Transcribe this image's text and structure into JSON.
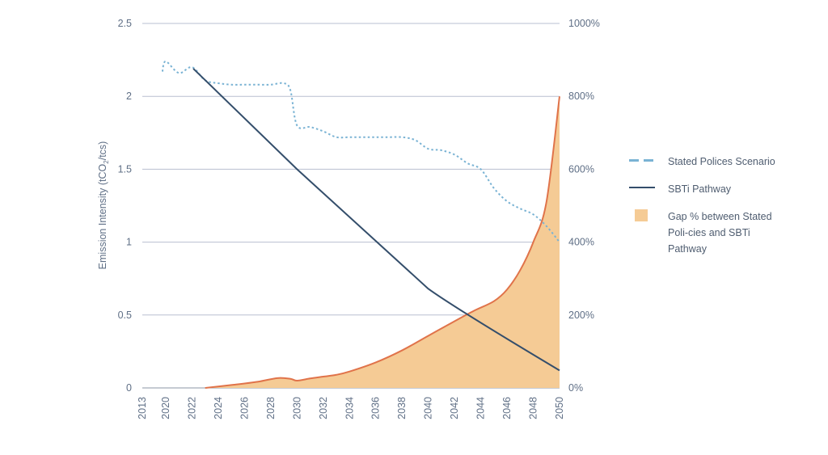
{
  "chart_data": {
    "type": "line+area",
    "title": "",
    "ylabel": "Emission Intensity (tCO2/tcs)",
    "ylabel_parts": [
      "Emission Intensity (tCO",
      "2",
      "/tcs)"
    ],
    "ylim": [
      0,
      2.5
    ],
    "y_ticks": [
      "0",
      "0.5",
      "1",
      "1.5",
      "2",
      "2.5"
    ],
    "y_tick_values": [
      0,
      0.5,
      1,
      1.5,
      2,
      2.5
    ],
    "y2lim": [
      0,
      1000
    ],
    "y2_ticks": [
      "0%",
      "200%",
      "400%",
      "600%",
      "800%",
      "1000%"
    ],
    "y2_tick_values": [
      0,
      200,
      400,
      600,
      800,
      1000
    ],
    "x_ticks": [
      "2013",
      "2020",
      "2022",
      "2024",
      "2026",
      "2028",
      "2030",
      "2032",
      "2034",
      "2036",
      "2038",
      "2040",
      "2042",
      "2044",
      "2046",
      "2048",
      "2050"
    ],
    "series": [
      {
        "name": "Stated Polices Scenario",
        "style": "dashed",
        "axis": "left",
        "color": "#7ab3d4",
        "points": [
          {
            "x": 2019.0,
            "y": 2.17
          },
          {
            "x": 2020.0,
            "y": 2.24
          },
          {
            "x": 2021.0,
            "y": 2.16
          },
          {
            "x": 2022.0,
            "y": 2.2
          },
          {
            "x": 2023.0,
            "y": 2.11
          },
          {
            "x": 2024.0,
            "y": 2.09
          },
          {
            "x": 2025.0,
            "y": 2.08
          },
          {
            "x": 2026.0,
            "y": 2.08
          },
          {
            "x": 2027.0,
            "y": 2.08
          },
          {
            "x": 2028.0,
            "y": 2.08
          },
          {
            "x": 2029.0,
            "y": 2.09
          },
          {
            "x": 2029.5,
            "y": 2.04
          },
          {
            "x": 2030.0,
            "y": 1.8
          },
          {
            "x": 2031.0,
            "y": 1.79
          },
          {
            "x": 2032.0,
            "y": 1.76
          },
          {
            "x": 2033.0,
            "y": 1.72
          },
          {
            "x": 2034.0,
            "y": 1.72
          },
          {
            "x": 2035.0,
            "y": 1.72
          },
          {
            "x": 2036.0,
            "y": 1.72
          },
          {
            "x": 2037.0,
            "y": 1.72
          },
          {
            "x": 2038.0,
            "y": 1.72
          },
          {
            "x": 2039.0,
            "y": 1.7
          },
          {
            "x": 2040.0,
            "y": 1.64
          },
          {
            "x": 2041.0,
            "y": 1.63
          },
          {
            "x": 2042.0,
            "y": 1.6
          },
          {
            "x": 2043.0,
            "y": 1.54
          },
          {
            "x": 2044.0,
            "y": 1.5
          },
          {
            "x": 2045.0,
            "y": 1.37
          },
          {
            "x": 2046.0,
            "y": 1.28
          },
          {
            "x": 2047.0,
            "y": 1.23
          },
          {
            "x": 2048.0,
            "y": 1.19
          },
          {
            "x": 2049.0,
            "y": 1.11
          },
          {
            "x": 2050.0,
            "y": 1.0
          }
        ]
      },
      {
        "name": "SBTi Pathway",
        "style": "solid",
        "axis": "left",
        "color": "#344e6b",
        "points": [
          {
            "x": 2022.1,
            "y": 2.19
          },
          {
            "x": 2030.0,
            "y": 1.5
          },
          {
            "x": 2040.0,
            "y": 0.68
          },
          {
            "x": 2050.0,
            "y": 0.12
          }
        ]
      },
      {
        "name": "Gap % between Stated Policies and SBTi Pathway",
        "style": "area",
        "axis": "right",
        "color": "#f5cb95",
        "line_color": "#e0734a",
        "points": [
          {
            "x": 2023.0,
            "y": 0
          },
          {
            "x": 2025.0,
            "y": 8
          },
          {
            "x": 2027.0,
            "y": 17
          },
          {
            "x": 2028.5,
            "y": 27
          },
          {
            "x": 2029.5,
            "y": 25
          },
          {
            "x": 2030.0,
            "y": 20
          },
          {
            "x": 2031.0,
            "y": 26
          },
          {
            "x": 2032.0,
            "y": 31
          },
          {
            "x": 2033.0,
            "y": 36
          },
          {
            "x": 2034.0,
            "y": 45
          },
          {
            "x": 2036.0,
            "y": 70
          },
          {
            "x": 2038.0,
            "y": 103
          },
          {
            "x": 2040.0,
            "y": 143
          },
          {
            "x": 2042.0,
            "y": 183
          },
          {
            "x": 2043.5,
            "y": 212
          },
          {
            "x": 2045.0,
            "y": 238
          },
          {
            "x": 2046.0,
            "y": 270
          },
          {
            "x": 2047.0,
            "y": 323
          },
          {
            "x": 2048.0,
            "y": 400
          },
          {
            "x": 2049.0,
            "y": 510
          },
          {
            "x": 2050.0,
            "y": 800
          }
        ]
      }
    ],
    "legend_position": "right"
  },
  "legend": {
    "items": [
      {
        "label": "Stated Polices Scenario"
      },
      {
        "label": "SBTi Pathway"
      },
      {
        "label": "Gap % between Stated Poli-cies and SBTi Pathway"
      }
    ]
  }
}
